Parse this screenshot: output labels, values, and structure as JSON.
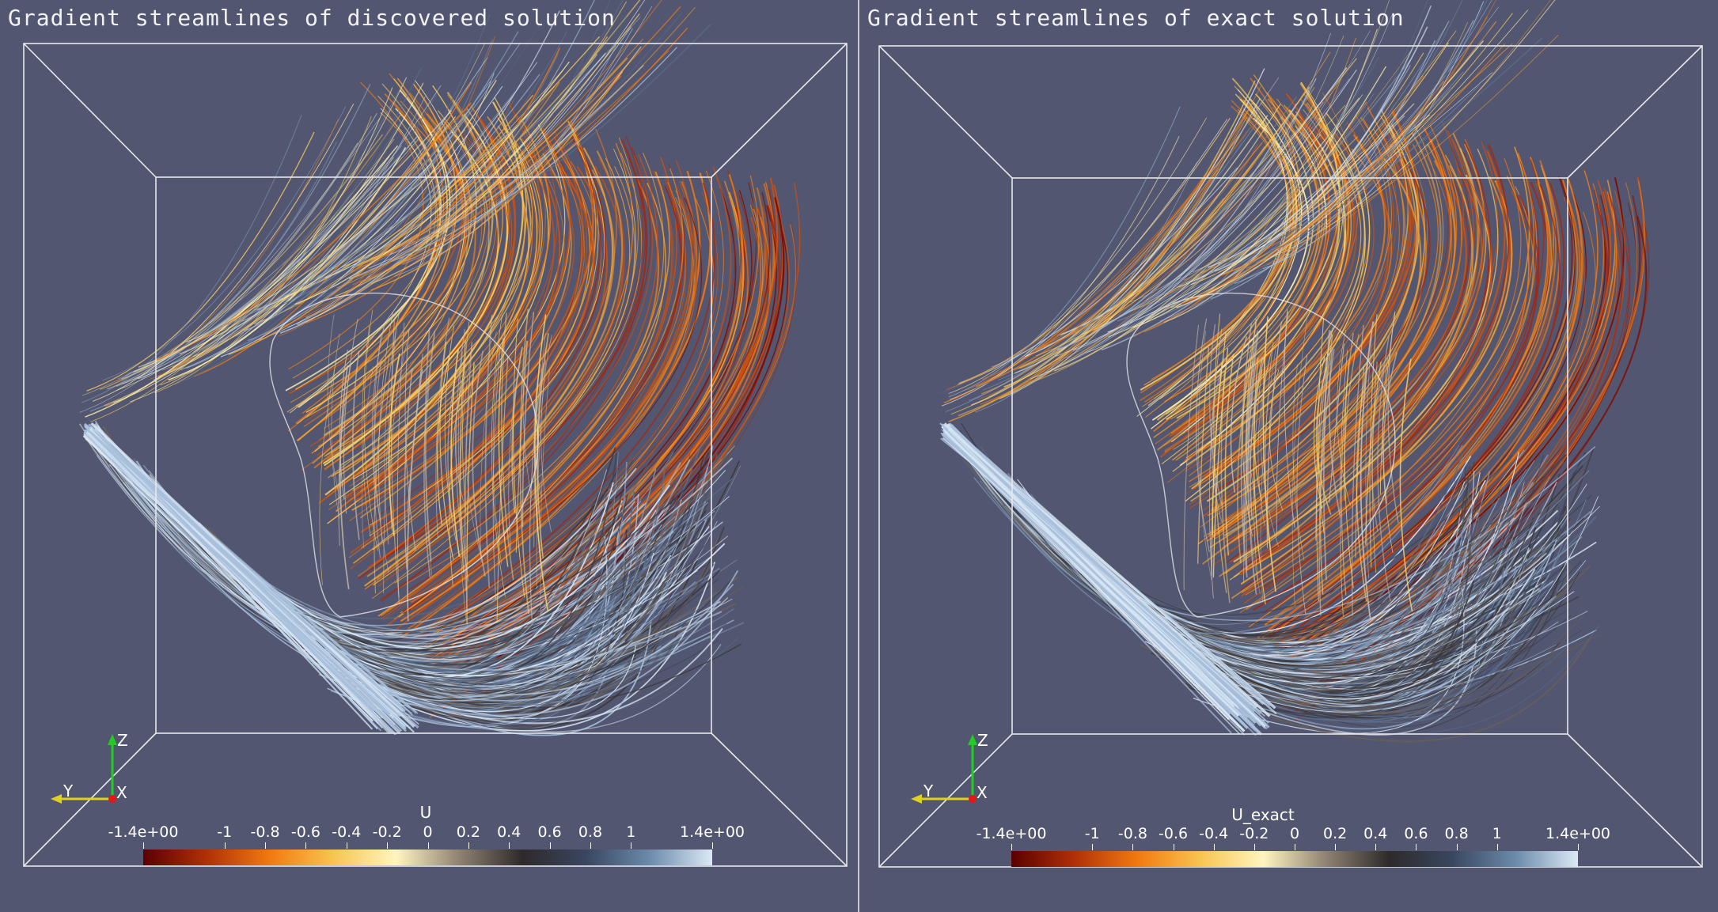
{
  "panels": [
    {
      "title": "Gradient streamlines of discovered solution",
      "colorbar": {
        "title": "U",
        "ticks": [
          "-1.4e+00",
          "-1",
          "-0.8",
          "-0.6",
          "-0.4",
          "-0.2",
          "0",
          "0.2",
          "0.4",
          "0.6",
          "0.8",
          "1",
          "1.4e+00"
        ],
        "tick_values": [
          -1.4,
          -1,
          -0.8,
          -0.6,
          -0.4,
          -0.2,
          0,
          0.2,
          0.4,
          0.6,
          0.8,
          1,
          1.4
        ],
        "range": [
          -1.4,
          1.4
        ]
      },
      "axes": {
        "z": "Z",
        "y": "Y",
        "x": "X"
      }
    },
    {
      "title": "Gradient streamlines of exact solution",
      "colorbar": {
        "title": "U_exact",
        "ticks": [
          "-1.4e+00",
          "-1",
          "-0.8",
          "-0.6",
          "-0.4",
          "-0.2",
          "0",
          "0.2",
          "0.4",
          "0.6",
          "0.8",
          "1",
          "1.4e+00"
        ],
        "tick_values": [
          -1.4,
          -1,
          -0.8,
          -0.6,
          -0.4,
          -0.2,
          0,
          0.2,
          0.4,
          0.6,
          0.8,
          1,
          1.4
        ],
        "range": [
          -1.4,
          1.4
        ]
      },
      "axes": {
        "z": "Z",
        "y": "Y",
        "x": "X"
      }
    }
  ],
  "colormap": {
    "name": "red-orange-yellow-grey-blue",
    "stops": [
      "#5a0000",
      "#b03008",
      "#f07a10",
      "#f8c450",
      "#fff5c0",
      "#8e8272",
      "#2e2a2a",
      "#3a4660",
      "#6a8aaa",
      "#dbe9f6"
    ]
  }
}
